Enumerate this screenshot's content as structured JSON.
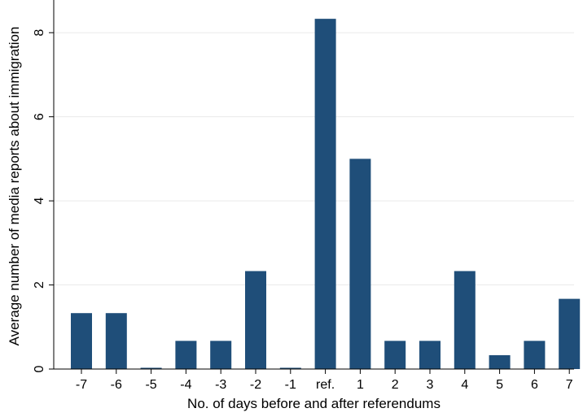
{
  "chart_data": {
    "type": "bar",
    "title": "",
    "xlabel": "No. of days before and after referendums",
    "ylabel": "Average number of media reports about immigration",
    "categories": [
      "-7",
      "-6",
      "-5",
      "-4",
      "-3",
      "-2",
      "-1",
      "ref.",
      "1",
      "2",
      "3",
      "4",
      "5",
      "6",
      "7"
    ],
    "values": [
      1.33,
      1.33,
      0.03,
      0.67,
      0.67,
      2.33,
      0.03,
      8.33,
      5.0,
      0.67,
      0.67,
      2.33,
      0.33,
      0.67,
      1.67
    ],
    "ylim": [
      0,
      8.7
    ],
    "yticks": [
      0,
      2,
      4,
      6,
      8
    ],
    "grid": true,
    "legend": "none",
    "colors": {
      "bar": "#1f4e79",
      "grid": "#eaeaea",
      "axis": "#000000",
      "background": "#ffffff"
    }
  }
}
